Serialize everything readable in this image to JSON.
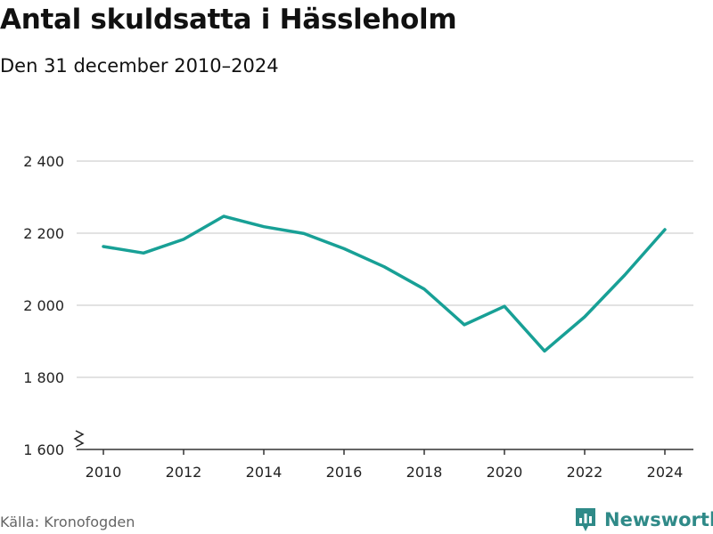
{
  "header": {
    "title": "Antal skuldsatta i Hässleholm",
    "subtitle": "Den 31 december 2010–2024"
  },
  "footer": {
    "source": "Källa: Kronofogden",
    "brand": "Newsworthy",
    "brand_color": "#2f8a88"
  },
  "chart_data": {
    "type": "line",
    "x": [
      2010,
      2011,
      2012,
      2013,
      2014,
      2015,
      2016,
      2017,
      2018,
      2019,
      2020,
      2021,
      2022,
      2023,
      2024
    ],
    "series": [
      {
        "values": [
          2163,
          2145,
          2183,
          2247,
          2218,
          2199,
          2157,
          2107,
          2045,
          1946,
          1997,
          1873,
          1968,
          2084,
          2210
        ],
        "color": "#18a096"
      }
    ],
    "x_ticks": [
      2010,
      2012,
      2014,
      2016,
      2018,
      2020,
      2022,
      2024
    ],
    "x_tick_labels": [
      "2010",
      "2012",
      "2014",
      "2016",
      "2018",
      "2020",
      "2022",
      "2024"
    ],
    "y_ticks": [
      1600,
      1800,
      2000,
      2200,
      2400
    ],
    "y_tick_labels": [
      "1 600",
      "1 800",
      "2 000",
      "2 200",
      "2 400"
    ],
    "xlim": [
      2010,
      2024
    ],
    "ylim": [
      1600,
      2400
    ],
    "y_axis_break": true,
    "grid": true,
    "legend": "none"
  }
}
